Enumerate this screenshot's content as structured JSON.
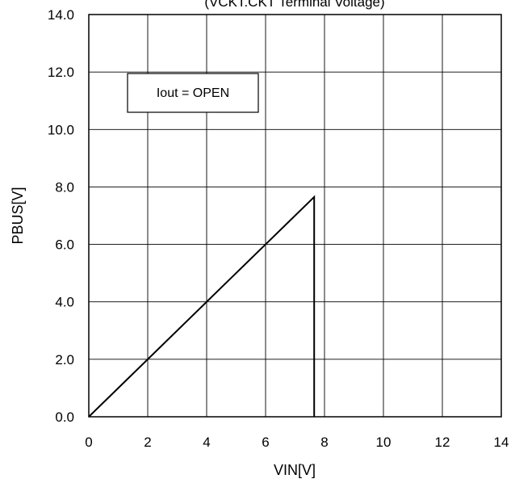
{
  "chart_data": {
    "type": "line",
    "title": "(VCKT.CKT Terminal Voltage)",
    "xlabel": "VIN[V]",
    "ylabel": "PBUS[V]",
    "xlim": [
      0,
      14
    ],
    "ylim": [
      0,
      14
    ],
    "xticks": [
      0,
      2,
      4,
      6,
      8,
      10,
      12,
      14
    ],
    "yticks": [
      0,
      2,
      4,
      6,
      8,
      10,
      12,
      14
    ],
    "xtick_labels": [
      "0",
      "2",
      "4",
      "6",
      "8",
      "10",
      "12",
      "14"
    ],
    "ytick_labels": [
      "0.0",
      "2.0",
      "4.0",
      "6.0",
      "8.0",
      "10.0",
      "12.0",
      "14.0"
    ],
    "grid": true,
    "annotation": "Iout = OPEN",
    "series": [
      {
        "color": "#000000",
        "x": [
          0,
          7.65,
          7.65
        ],
        "y": [
          0,
          7.65,
          0
        ]
      }
    ]
  }
}
